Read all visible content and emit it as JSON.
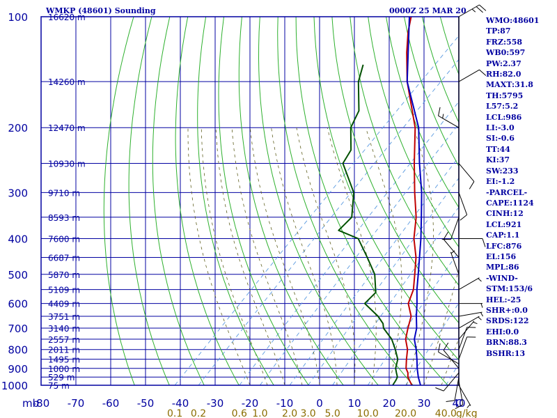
{
  "header": {
    "station": "WMKP (48601) Sounding",
    "time": "0000Z 25 MAR 20"
  },
  "indices": [
    "WMO:48601",
    "TP:87",
    "FRZ:558",
    "WB0:597",
    "PW:2.37",
    "RH:82.0",
    "MAXT:31.8",
    "TH:5795",
    "L57:5.2",
    "LCL:986",
    "LI:-3.0",
    "SI:-0.6",
    "TT:44",
    "KI:37",
    "SW:233",
    "EI:-1.2",
    "-PARCEL-",
    "CAPE:1124",
    "CINH:12",
    "LCL:921",
    "CAP:1.1",
    "LFC:876",
    "EL:156",
    "MPL:86",
    "-WIND-",
    "STM:153/6",
    "HEL:-25",
    "SHR+:0.0",
    "SRDS:122",
    "EHI:0.0",
    "BRN:88.3",
    "BSHR:13"
  ],
  "colors": {
    "frame": "#0000a0",
    "isotherm": "#0000a0",
    "isobar": "#0000a0",
    "dry_adiabat": "#2db02d",
    "moist_adiabat": "#606020",
    "mixing_ratio": "#5a9ae0",
    "temperature": "#c00000",
    "dewpoint": "#005000",
    "virtual_temperature": "#0000c0",
    "wind": "#000000",
    "mixing_label": "#8a6d00",
    "axis_text": "#0000a0"
  },
  "chart_data": {
    "type": "skew-t log-p sounding",
    "x_axis": {
      "label": "C",
      "range": [
        -80,
        40
      ],
      "ticks": [
        -80,
        -70,
        -60,
        -50,
        -40,
        -30,
        -20,
        -10,
        0,
        10,
        20,
        30,
        40
      ]
    },
    "y_axis": {
      "label": "mb",
      "log_scale": true,
      "range": [
        1000,
        100
      ],
      "ticks": [
        100,
        200,
        300,
        400,
        500,
        600,
        700,
        800,
        900,
        1000
      ]
    },
    "height_labels": [
      {
        "p": 100,
        "label": "16620 m"
      },
      {
        "p": 150,
        "label": "14260 m"
      },
      {
        "p": 200,
        "label": "12470 m"
      },
      {
        "p": 250,
        "label": "10930 m"
      },
      {
        "p": 300,
        "label": "9710 m"
      },
      {
        "p": 350,
        "label": "8593 m"
      },
      {
        "p": 400,
        "label": "7600 m"
      },
      {
        "p": 450,
        "label": "6687 m"
      },
      {
        "p": 500,
        "label": "5870 m"
      },
      {
        "p": 550,
        "label": "5109 m"
      },
      {
        "p": 600,
        "label": "4409 m"
      },
      {
        "p": 650,
        "label": "3751 m"
      },
      {
        "p": 700,
        "label": "3140 m"
      },
      {
        "p": 750,
        "label": "2557 m"
      },
      {
        "p": 800,
        "label": "2011 m"
      },
      {
        "p": 850,
        "label": "1495 m"
      },
      {
        "p": 900,
        "label": "1000 m"
      },
      {
        "p": 950,
        "label": "529 m"
      },
      {
        "p": 1000,
        "label": "75 m"
      }
    ],
    "mixing_ratio_labels": [
      "0.1",
      "0.2",
      "0.6",
      "1.0",
      "2.0",
      "3.0",
      "5.0",
      "10.0",
      "20.0",
      "40.0"
    ],
    "mixing_ratio_unit": "g/kg",
    "temperature": [
      [
        1000,
        26.5
      ],
      [
        950,
        23.0
      ],
      [
        925,
        21.8
      ],
      [
        900,
        20.0
      ],
      [
        850,
        17.5
      ],
      [
        800,
        15.0
      ],
      [
        750,
        11.5
      ],
      [
        700,
        9.0
      ],
      [
        650,
        6.5
      ],
      [
        600,
        2.0
      ],
      [
        550,
        -0.5
      ],
      [
        500,
        -4.5
      ],
      [
        450,
        -9.0
      ],
      [
        400,
        -15.0
      ],
      [
        350,
        -20.5
      ],
      [
        300,
        -28.0
      ],
      [
        250,
        -36.5
      ],
      [
        200,
        -46.5
      ],
      [
        150,
        -62.0
      ],
      [
        125,
        -70.5
      ],
      [
        110,
        -76.0
      ],
      [
        100,
        -79.5
      ]
    ],
    "dewpoint": [
      [
        1000,
        21.0
      ],
      [
        970,
        20.5
      ],
      [
        950,
        20.0
      ],
      [
        925,
        18.5
      ],
      [
        900,
        17.0
      ],
      [
        850,
        15.0
      ],
      [
        800,
        11.5
      ],
      [
        750,
        7.5
      ],
      [
        700,
        2.0
      ],
      [
        680,
        0.5
      ],
      [
        650,
        -3.0
      ],
      [
        600,
        -10.5
      ],
      [
        560,
        -10.5
      ],
      [
        500,
        -16.0
      ],
      [
        450,
        -23.0
      ],
      [
        400,
        -31.0
      ],
      [
        380,
        -39.0
      ],
      [
        350,
        -39.0
      ],
      [
        300,
        -45.5
      ],
      [
        250,
        -57.0
      ],
      [
        230,
        -58.5
      ],
      [
        200,
        -65.0
      ],
      [
        180,
        -67.5
      ],
      [
        150,
        -76.0
      ],
      [
        135,
        -79.5
      ]
    ],
    "virtual_temperature": [
      [
        1000,
        29.0
      ],
      [
        950,
        26.0
      ],
      [
        900,
        23.2
      ],
      [
        850,
        20.5
      ],
      [
        800,
        17.5
      ],
      [
        750,
        14.0
      ],
      [
        700,
        11.5
      ],
      [
        650,
        8.0
      ],
      [
        600,
        4.5
      ],
      [
        550,
        0.5
      ],
      [
        500,
        -3.5
      ],
      [
        450,
        -8.0
      ],
      [
        400,
        -13.0
      ],
      [
        350,
        -19.0
      ],
      [
        300,
        -26.0
      ],
      [
        250,
        -35.0
      ],
      [
        200,
        -45.5
      ],
      [
        150,
        -62.0
      ],
      [
        100,
        -80.0
      ]
    ],
    "wind_barbs": [
      {
        "p": 1000,
        "dir": 150,
        "kt": 5
      },
      {
        "p": 975,
        "dir": 170,
        "kt": 10
      },
      {
        "p": 950,
        "dir": 190,
        "kt": 10
      },
      {
        "p": 925,
        "dir": 220,
        "kt": 10
      },
      {
        "p": 900,
        "dir": 320,
        "kt": 10
      },
      {
        "p": 875,
        "dir": 300,
        "kt": 10
      },
      {
        "p": 850,
        "dir": 20,
        "kt": 10
      },
      {
        "p": 800,
        "dir": 20,
        "kt": 10
      },
      {
        "p": 750,
        "dir": 40,
        "kt": 5
      },
      {
        "p": 700,
        "dir": 60,
        "kt": 5
      },
      {
        "p": 650,
        "dir": 80,
        "kt": 5
      },
      {
        "p": 600,
        "dir": 90,
        "kt": 5
      },
      {
        "p": 550,
        "dir": 60,
        "kt": 5
      },
      {
        "p": 500,
        "dir": 340,
        "kt": 5
      },
      {
        "p": 450,
        "dir": 320,
        "kt": 10
      },
      {
        "p": 400,
        "dir": 90,
        "kt": 10
      },
      {
        "p": 350,
        "dir": 200,
        "kt": 10
      },
      {
        "p": 300,
        "dir": 160,
        "kt": 10
      },
      {
        "p": 250,
        "dir": 140,
        "kt": 10
      },
      {
        "p": 200,
        "dir": 300,
        "kt": 15
      },
      {
        "p": 150,
        "dir": 60,
        "kt": 10
      },
      {
        "p": 100,
        "dir": 60,
        "kt": 25
      }
    ]
  }
}
